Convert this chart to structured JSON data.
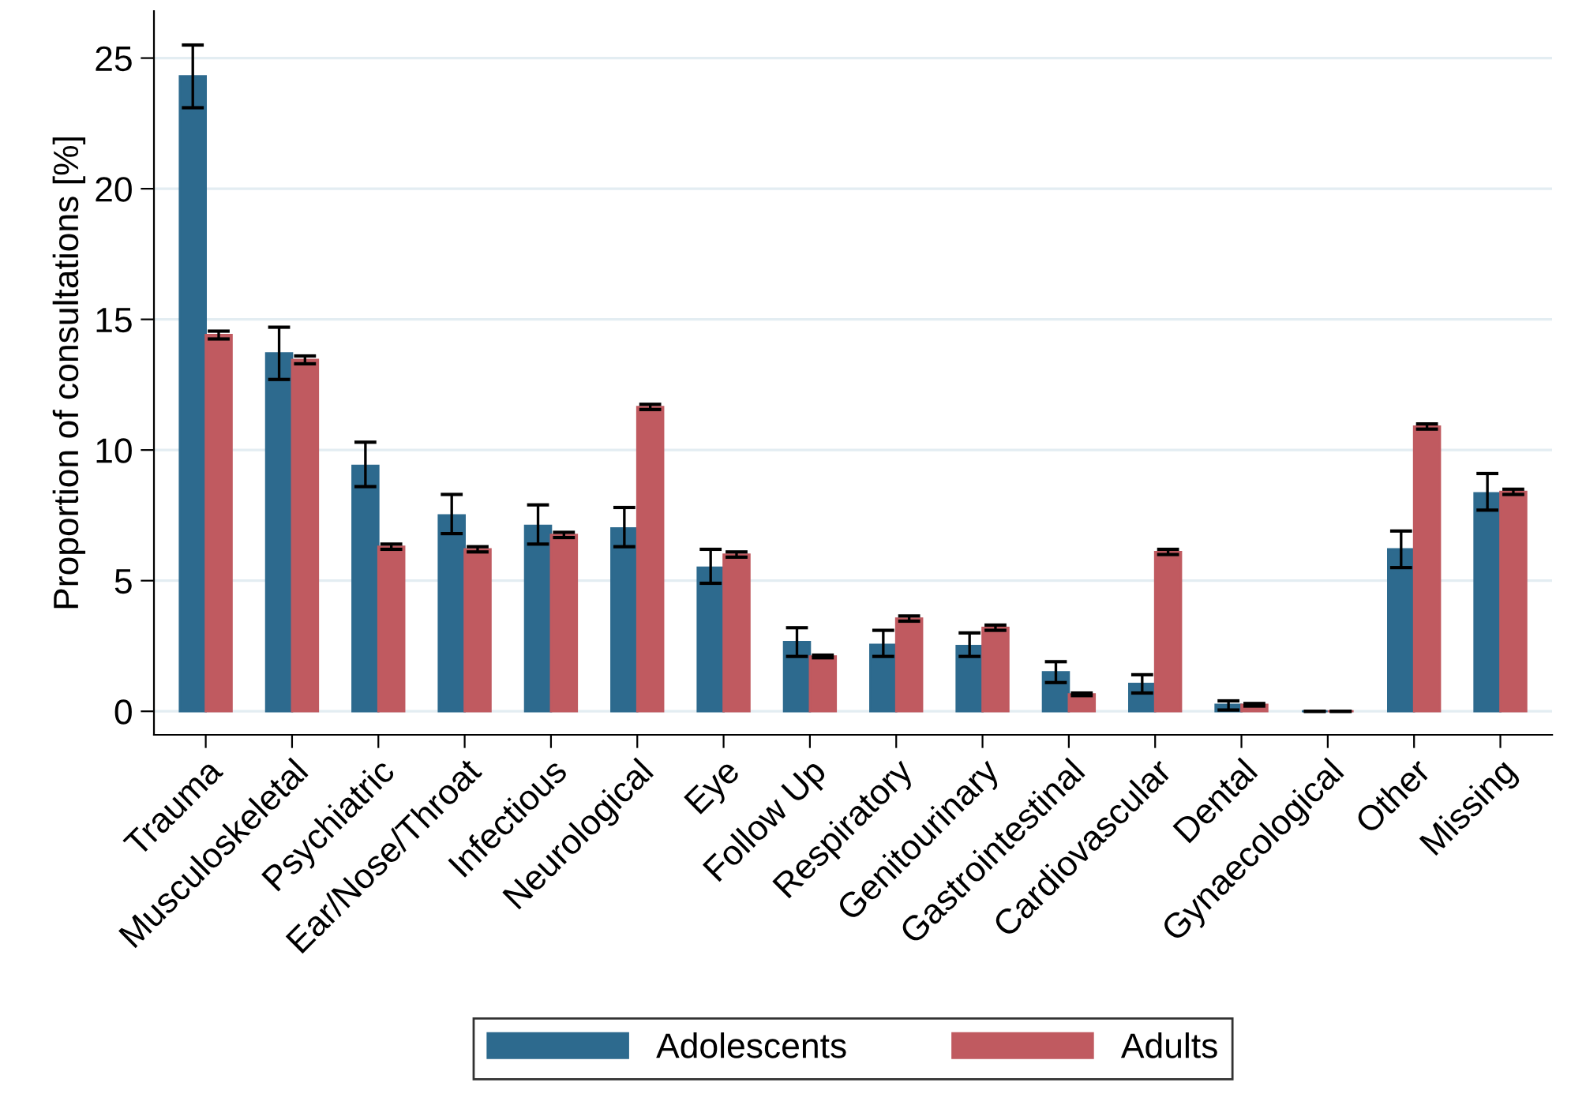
{
  "chart_data": {
    "type": "bar",
    "ylabel": "Proportion of consultations [%]",
    "categories": [
      "Trauma",
      "Musculoskeletal",
      "Psychiatric",
      "Ear/Nose/Throat",
      "Infectious",
      "Neurological",
      "Eye",
      "Follow Up",
      "Respiratory",
      "Genitourinary",
      "Gastrointestinal",
      "Cardiovascular",
      "Dental",
      "Gynaecological",
      "Other",
      "Missing"
    ],
    "series": [
      {
        "name": "Adolescents",
        "color": "#2d6a8e",
        "values": [
          24.3,
          13.7,
          9.4,
          7.5,
          7.1,
          7.0,
          5.5,
          2.65,
          2.55,
          2.5,
          1.5,
          1.05,
          0.25,
          0.0,
          6.2,
          8.35
        ],
        "errors": [
          [
            23.1,
            25.5
          ],
          [
            12.7,
            14.7
          ],
          [
            8.6,
            10.3
          ],
          [
            6.8,
            8.3
          ],
          [
            6.4,
            7.9
          ],
          [
            6.3,
            7.8
          ],
          [
            4.9,
            6.2
          ],
          [
            2.1,
            3.2
          ],
          [
            2.1,
            3.1
          ],
          [
            2.1,
            3.0
          ],
          [
            1.1,
            1.9
          ],
          [
            0.7,
            1.4
          ],
          [
            0.05,
            0.4
          ],
          [
            0.0,
            0.0
          ],
          [
            5.5,
            6.9
          ],
          [
            7.7,
            9.1
          ]
        ]
      },
      {
        "name": "Adults",
        "color": "#c05a60",
        "values": [
          14.4,
          13.45,
          6.3,
          6.2,
          6.75,
          11.65,
          6.0,
          2.1,
          3.55,
          3.2,
          0.65,
          6.1,
          0.25,
          0.0,
          10.9,
          8.4
        ],
        "errors": [
          [
            14.25,
            14.55
          ],
          [
            13.3,
            13.6
          ],
          [
            6.2,
            6.4
          ],
          [
            6.1,
            6.3
          ],
          [
            6.65,
            6.85
          ],
          [
            11.55,
            11.75
          ],
          [
            5.9,
            6.1
          ],
          [
            2.05,
            2.15
          ],
          [
            3.45,
            3.65
          ],
          [
            3.1,
            3.3
          ],
          [
            0.6,
            0.7
          ],
          [
            6.0,
            6.2
          ],
          [
            0.2,
            0.3
          ],
          [
            0.0,
            0.0
          ],
          [
            10.8,
            11.0
          ],
          [
            8.3,
            8.5
          ]
        ]
      }
    ],
    "ylim": [
      -0.9,
      26.8
    ],
    "yticks": [
      0,
      5,
      10,
      15,
      20,
      25
    ],
    "grid": "y",
    "legend": "bottom"
  }
}
